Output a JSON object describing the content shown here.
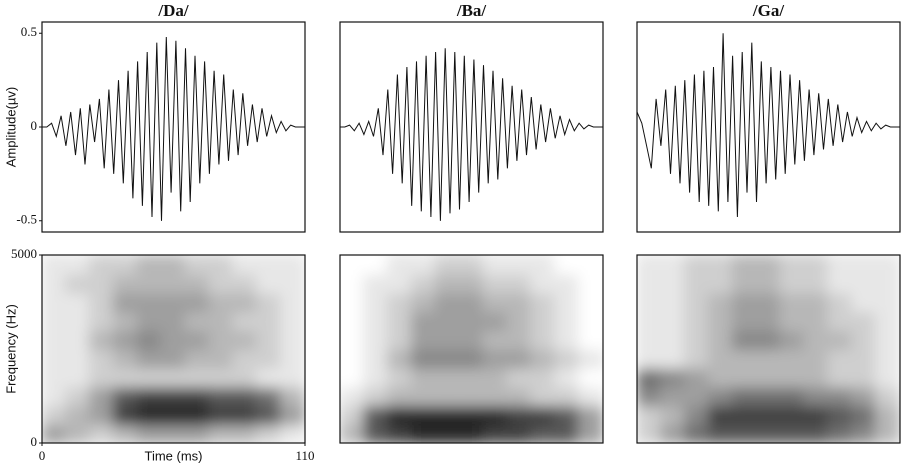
{
  "chart_data": [
    {
      "type": "line",
      "title": "/Da/",
      "ylabel": "Amplitude(µv)",
      "xlim": [
        0,
        110
      ],
      "ylim": [
        -0.56,
        0.56
      ],
      "yticks": [
        -0.5,
        0,
        0.5
      ],
      "color": "#111111",
      "x": [
        0,
        2,
        4,
        6,
        8,
        10,
        12,
        14,
        16,
        18,
        20,
        22,
        24,
        26,
        28,
        30,
        32,
        34,
        36,
        38,
        40,
        42,
        44,
        46,
        48,
        50,
        52,
        54,
        56,
        58,
        60,
        62,
        64,
        66,
        68,
        70,
        72,
        74,
        76,
        78,
        80,
        82,
        84,
        86,
        88,
        90,
        92,
        94,
        96,
        98,
        100,
        102,
        104,
        106,
        108,
        110
      ],
      "values": [
        0,
        0,
        0.02,
        -0.05,
        0.06,
        -0.1,
        0.08,
        -0.15,
        0.1,
        -0.2,
        0.12,
        -0.08,
        0.15,
        -0.22,
        0.2,
        -0.25,
        0.25,
        -0.3,
        0.3,
        -0.38,
        0.35,
        -0.42,
        0.4,
        -0.48,
        0.45,
        -0.5,
        0.48,
        -0.35,
        0.46,
        -0.45,
        0.42,
        -0.4,
        0.38,
        -0.3,
        0.35,
        -0.25,
        0.3,
        -0.2,
        0.28,
        -0.18,
        0.2,
        -0.15,
        0.18,
        -0.1,
        0.12,
        -0.08,
        0.1,
        -0.05,
        0.06,
        -0.03,
        0.03,
        -0.02,
        0.01,
        0,
        0,
        0
      ]
    },
    {
      "type": "line",
      "title": "/Ba/",
      "xlim": [
        0,
        110
      ],
      "ylim": [
        -0.56,
        0.56
      ],
      "color": "#111111",
      "x": [
        0,
        2,
        4,
        6,
        8,
        10,
        12,
        14,
        16,
        18,
        20,
        22,
        24,
        26,
        28,
        30,
        32,
        34,
        36,
        38,
        40,
        42,
        44,
        46,
        48,
        50,
        52,
        54,
        56,
        58,
        60,
        62,
        64,
        66,
        68,
        70,
        72,
        74,
        76,
        78,
        80,
        82,
        84,
        86,
        88,
        90,
        92,
        94,
        96,
        98,
        100,
        102,
        104,
        106,
        108,
        110
      ],
      "values": [
        0,
        0,
        0.01,
        -0.02,
        0.02,
        -0.04,
        0.03,
        -0.05,
        0.1,
        -0.15,
        0.2,
        -0.25,
        0.28,
        -0.3,
        0.32,
        -0.42,
        0.35,
        -0.45,
        0.38,
        -0.48,
        0.4,
        -0.5,
        0.42,
        -0.46,
        0.4,
        -0.44,
        0.38,
        -0.4,
        0.36,
        -0.35,
        0.33,
        -0.3,
        0.3,
        -0.28,
        0.26,
        -0.22,
        0.22,
        -0.18,
        0.2,
        -0.15,
        0.16,
        -0.12,
        0.12,
        -0.08,
        0.1,
        -0.06,
        0.06,
        -0.04,
        0.04,
        -0.02,
        0.02,
        -0.01,
        0.01,
        0,
        0,
        0
      ]
    },
    {
      "type": "line",
      "title": "/Ga/",
      "xlim": [
        0,
        110
      ],
      "ylim": [
        -0.56,
        0.56
      ],
      "color": "#111111",
      "x": [
        0,
        2,
        4,
        6,
        8,
        10,
        12,
        14,
        16,
        18,
        20,
        22,
        24,
        26,
        28,
        30,
        32,
        34,
        36,
        38,
        40,
        42,
        44,
        46,
        48,
        50,
        52,
        54,
        56,
        58,
        60,
        62,
        64,
        66,
        68,
        70,
        72,
        74,
        76,
        78,
        80,
        82,
        84,
        86,
        88,
        90,
        92,
        94,
        96,
        98,
        100,
        102,
        104,
        106,
        108,
        110
      ],
      "values": [
        0.08,
        0.02,
        -0.1,
        -0.22,
        0.15,
        -0.1,
        0.2,
        -0.25,
        0.22,
        -0.3,
        0.25,
        -0.35,
        0.28,
        -0.4,
        0.3,
        -0.42,
        0.32,
        -0.45,
        0.5,
        -0.4,
        0.38,
        -0.48,
        0.4,
        -0.35,
        0.45,
        -0.4,
        0.35,
        -0.3,
        0.32,
        -0.28,
        0.3,
        -0.25,
        0.28,
        -0.2,
        0.25,
        -0.18,
        0.2,
        -0.15,
        0.18,
        -0.12,
        0.15,
        -0.1,
        0.12,
        -0.08,
        0.08,
        -0.05,
        0.05,
        -0.03,
        0.03,
        -0.02,
        0.02,
        -0.01,
        0.01,
        0,
        0,
        0
      ]
    },
    {
      "type": "heatmap",
      "ylabel": "Frequency (Hz)",
      "xlabel": "Time (ms)",
      "xlim": [
        0,
        110
      ],
      "xticks": [
        0,
        110
      ],
      "ylim": [
        0,
        5000
      ],
      "yticks": [
        0,
        5000
      ],
      "zlim": [
        0,
        9
      ],
      "xbins": [
        0,
        10,
        20,
        30,
        40,
        50,
        60,
        70,
        80,
        90,
        100,
        110
      ],
      "ybins": [
        0,
        500,
        1000,
        1500,
        2000,
        2500,
        3000,
        3500,
        4000,
        4500,
        5000
      ],
      "values": [
        [
          4,
          3,
          2,
          3,
          4,
          4,
          4,
          3,
          3,
          2,
          1
        ],
        [
          2,
          3,
          4,
          8,
          9,
          9,
          9,
          8,
          8,
          7,
          4
        ],
        [
          1,
          2,
          4,
          7,
          8,
          8,
          8,
          7,
          7,
          6,
          3
        ],
        [
          1,
          1,
          2,
          2,
          2,
          2,
          2,
          2,
          2,
          1,
          1
        ],
        [
          1,
          1,
          2,
          3,
          4,
          4,
          3,
          3,
          2,
          2,
          1
        ],
        [
          1,
          1,
          3,
          4,
          5,
          4,
          4,
          3,
          3,
          2,
          1
        ],
        [
          1,
          1,
          2,
          3,
          4,
          4,
          3,
          3,
          2,
          2,
          1
        ],
        [
          1,
          1,
          2,
          4,
          4,
          4,
          4,
          3,
          3,
          2,
          1
        ],
        [
          1,
          2,
          2,
          3,
          3,
          3,
          3,
          2,
          2,
          1,
          1
        ],
        [
          1,
          1,
          2,
          2,
          3,
          3,
          2,
          2,
          1,
          1,
          1
        ]
      ]
    },
    {
      "type": "heatmap",
      "xlim": [
        0,
        110
      ],
      "ylim": [
        0,
        5000
      ],
      "zlim": [
        0,
        9
      ],
      "xbins": [
        0,
        10,
        20,
        30,
        40,
        50,
        60,
        70,
        80,
        90,
        100,
        110
      ],
      "ybins": [
        0,
        500,
        1000,
        1500,
        2000,
        2500,
        3000,
        3500,
        4000,
        4500,
        5000
      ],
      "values": [
        [
          3,
          7,
          8,
          9,
          9,
          9,
          8,
          8,
          7,
          7,
          4
        ],
        [
          2,
          7,
          9,
          9,
          9,
          9,
          9,
          8,
          8,
          7,
          4
        ],
        [
          1,
          2,
          3,
          3,
          3,
          3,
          3,
          3,
          2,
          2,
          1
        ],
        [
          0,
          1,
          2,
          3,
          3,
          3,
          3,
          2,
          2,
          1,
          0
        ],
        [
          0,
          1,
          3,
          5,
          5,
          5,
          4,
          4,
          3,
          2,
          1
        ],
        [
          0,
          1,
          2,
          4,
          4,
          4,
          3,
          3,
          2,
          1,
          0
        ],
        [
          0,
          1,
          2,
          4,
          4,
          4,
          4,
          3,
          2,
          1,
          0
        ],
        [
          0,
          1,
          2,
          3,
          4,
          4,
          3,
          3,
          2,
          1,
          0
        ],
        [
          0,
          1,
          1,
          2,
          3,
          3,
          2,
          2,
          1,
          1,
          0
        ],
        [
          0,
          0,
          1,
          1,
          2,
          2,
          1,
          1,
          1,
          0,
          0
        ]
      ]
    },
    {
      "type": "heatmap",
      "xlim": [
        0,
        110
      ],
      "ylim": [
        0,
        5000
      ],
      "zlim": [
        0,
        9
      ],
      "xbins": [
        0,
        10,
        20,
        30,
        40,
        50,
        60,
        70,
        80,
        90,
        100,
        110
      ],
      "ybins": [
        0,
        500,
        1000,
        1500,
        2000,
        2500,
        3000,
        3500,
        4000,
        4500,
        5000
      ],
      "values": [
        [
          2,
          4,
          6,
          7,
          7,
          7,
          7,
          7,
          6,
          5,
          3
        ],
        [
          2,
          3,
          5,
          8,
          8,
          8,
          8,
          8,
          7,
          6,
          3
        ],
        [
          5,
          4,
          4,
          5,
          6,
          6,
          6,
          5,
          5,
          4,
          2
        ],
        [
          6,
          5,
          4,
          3,
          3,
          3,
          3,
          3,
          2,
          2,
          1
        ],
        [
          1,
          1,
          2,
          3,
          3,
          3,
          3,
          3,
          2,
          2,
          1
        ],
        [
          1,
          1,
          2,
          3,
          5,
          5,
          4,
          3,
          3,
          2,
          1
        ],
        [
          1,
          1,
          2,
          3,
          4,
          4,
          3,
          3,
          2,
          2,
          1
        ],
        [
          1,
          1,
          2,
          3,
          4,
          4,
          3,
          3,
          2,
          1,
          1
        ],
        [
          1,
          1,
          2,
          2,
          3,
          3,
          2,
          2,
          1,
          1,
          1
        ],
        [
          1,
          1,
          2,
          2,
          3,
          3,
          2,
          2,
          1,
          1,
          1
        ]
      ]
    }
  ]
}
